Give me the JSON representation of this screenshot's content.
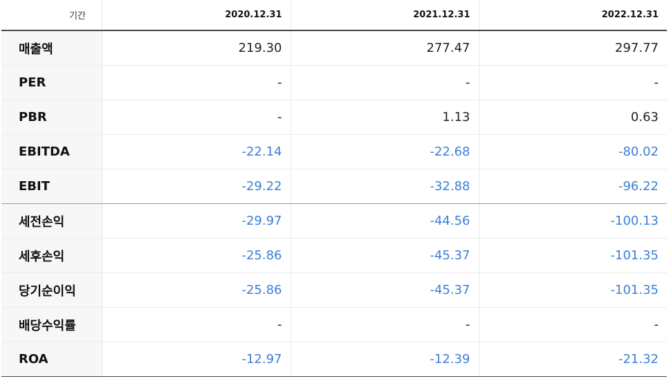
{
  "table": {
    "header": {
      "label": "기간",
      "periods": [
        "2020.12.31",
        "2021.12.31",
        "2022.12.31"
      ]
    },
    "rows": [
      {
        "label": "매출액",
        "values": [
          "219.30",
          "277.47",
          "297.77"
        ]
      },
      {
        "label": "PER",
        "values": [
          "-",
          "-",
          "-"
        ]
      },
      {
        "label": "PBR",
        "values": [
          "-",
          "1.13",
          "0.63"
        ]
      },
      {
        "label": "EBITDA",
        "values": [
          "-22.14",
          "-22.68",
          "-80.02"
        ]
      },
      {
        "label": "EBIT",
        "values": [
          "-29.22",
          "-32.88",
          "-96.22"
        ]
      },
      {
        "label": "세전손익",
        "values": [
          "-29.97",
          "-44.56",
          "-100.13"
        ]
      },
      {
        "label": "세후손익",
        "values": [
          "-25.86",
          "-45.37",
          "-101.35"
        ]
      },
      {
        "label": "당기순이익",
        "values": [
          "-25.86",
          "-45.37",
          "-101.35"
        ]
      },
      {
        "label": "배당수익률",
        "values": [
          "-",
          "-",
          "-"
        ]
      },
      {
        "label": "ROA",
        "values": [
          "-12.97",
          "-12.39",
          "-21.32"
        ]
      }
    ]
  },
  "colors": {
    "negative": "#3b7fd6",
    "label_bg": "#f7f7f7"
  }
}
